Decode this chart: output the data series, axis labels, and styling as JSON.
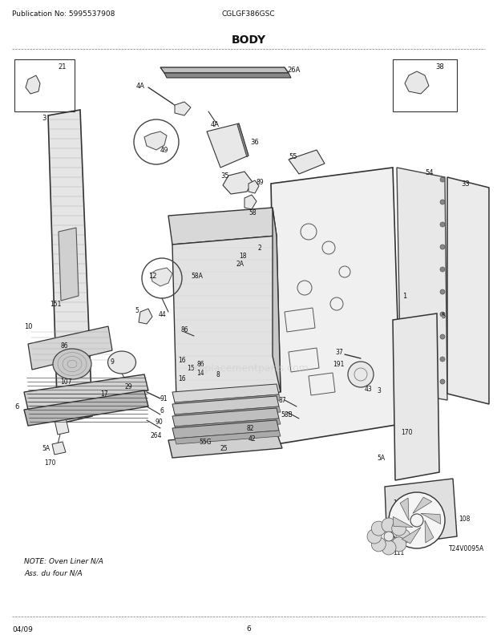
{
  "title": "BODY",
  "pub_no": "Publication No: 5995537908",
  "model": "CGLGF386GSC",
  "date": "04/09",
  "page": "6",
  "bg_color": "#ffffff",
  "text_color": "#000000",
  "note_text": "NOTE: Oven Liner N/A\nAss. du four N/A",
  "watermark": "ereplacementparts.com",
  "line_color": "#333333",
  "gray_fill": "#d0d0d0",
  "light_gray": "#e8e8e8",
  "dark_gray": "#888888"
}
